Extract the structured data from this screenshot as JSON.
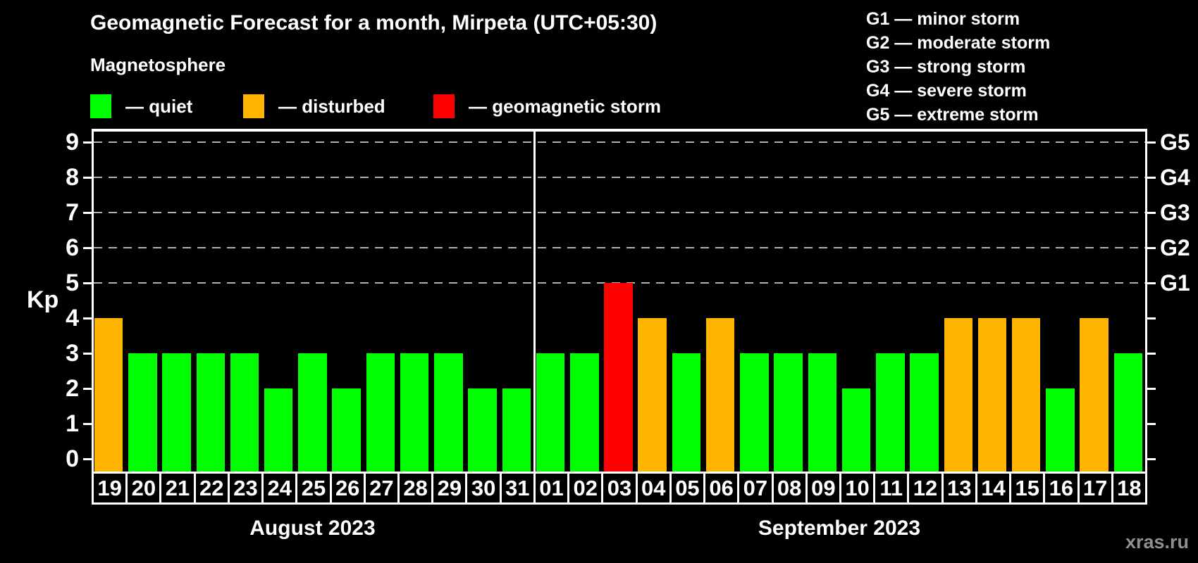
{
  "title": "Geomagnetic Forecast for a month, Mirpeta (UTC+05:30)",
  "magnetosphere_legend": {
    "heading": "Magnetosphere",
    "items": [
      {
        "key": "quiet",
        "label": "— quiet",
        "color": "#00ff00"
      },
      {
        "key": "disturbed",
        "label": "— disturbed",
        "color": "#ffb400"
      },
      {
        "key": "storm",
        "label": "— geomagnetic storm",
        "color": "#ff0000"
      }
    ]
  },
  "g_legend": [
    "G1 — minor storm",
    "G2 — moderate storm",
    "G3 — strong storm",
    "G4 — severe storm",
    "G5 — extreme storm"
  ],
  "watermark": "xras.ru",
  "chart_data": {
    "type": "bar",
    "title": "Geomagnetic Forecast for a month, Mirpeta (UTC+05:30)",
    "ylabel": "Kp",
    "ylim": [
      0,
      9
    ],
    "y_ticks": [
      0,
      1,
      2,
      3,
      4,
      5,
      6,
      7,
      8,
      9
    ],
    "gridlines_at": [
      5,
      6,
      7,
      8,
      9
    ],
    "grid": "dashed horizontal lines at storm levels only",
    "legend_position": "top",
    "right_axis": [
      {
        "value": 5,
        "label": "G1"
      },
      {
        "value": 6,
        "label": "G2"
      },
      {
        "value": 7,
        "label": "G3"
      },
      {
        "value": 8,
        "label": "G4"
      },
      {
        "value": 9,
        "label": "G5"
      }
    ],
    "colors": {
      "quiet": "#00ff00",
      "disturbed": "#ffb400",
      "storm": "#ff0000"
    },
    "months": [
      {
        "label": "August 2023",
        "days": [
          {
            "day": "19",
            "kp": 4,
            "status": "disturbed"
          },
          {
            "day": "20",
            "kp": 3,
            "status": "quiet"
          },
          {
            "day": "21",
            "kp": 3,
            "status": "quiet"
          },
          {
            "day": "22",
            "kp": 3,
            "status": "quiet"
          },
          {
            "day": "23",
            "kp": 3,
            "status": "quiet"
          },
          {
            "day": "24",
            "kp": 2,
            "status": "quiet"
          },
          {
            "day": "25",
            "kp": 3,
            "status": "quiet"
          },
          {
            "day": "26",
            "kp": 2,
            "status": "quiet"
          },
          {
            "day": "27",
            "kp": 3,
            "status": "quiet"
          },
          {
            "day": "28",
            "kp": 3,
            "status": "quiet"
          },
          {
            "day": "29",
            "kp": 3,
            "status": "quiet"
          },
          {
            "day": "30",
            "kp": 2,
            "status": "quiet"
          },
          {
            "day": "31",
            "kp": 2,
            "status": "quiet"
          }
        ]
      },
      {
        "label": "September 2023",
        "days": [
          {
            "day": "01",
            "kp": 3,
            "status": "quiet"
          },
          {
            "day": "02",
            "kp": 3,
            "status": "quiet"
          },
          {
            "day": "03",
            "kp": 5,
            "status": "storm"
          },
          {
            "day": "04",
            "kp": 4,
            "status": "disturbed"
          },
          {
            "day": "05",
            "kp": 3,
            "status": "quiet"
          },
          {
            "day": "06",
            "kp": 4,
            "status": "disturbed"
          },
          {
            "day": "07",
            "kp": 3,
            "status": "quiet"
          },
          {
            "day": "08",
            "kp": 3,
            "status": "quiet"
          },
          {
            "day": "09",
            "kp": 3,
            "status": "quiet"
          },
          {
            "day": "10",
            "kp": 2,
            "status": "quiet"
          },
          {
            "day": "11",
            "kp": 3,
            "status": "quiet"
          },
          {
            "day": "12",
            "kp": 3,
            "status": "quiet"
          },
          {
            "day": "13",
            "kp": 4,
            "status": "disturbed"
          },
          {
            "day": "14",
            "kp": 4,
            "status": "disturbed"
          },
          {
            "day": "15",
            "kp": 4,
            "status": "disturbed"
          },
          {
            "day": "16",
            "kp": 2,
            "status": "quiet"
          },
          {
            "day": "17",
            "kp": 4,
            "status": "disturbed"
          },
          {
            "day": "18",
            "kp": 3,
            "status": "quiet"
          }
        ]
      }
    ]
  }
}
